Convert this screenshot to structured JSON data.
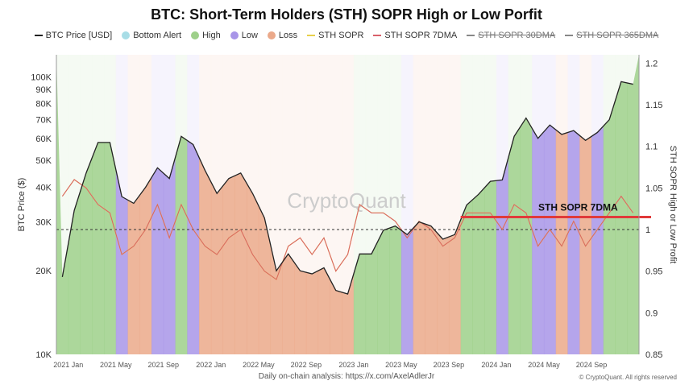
{
  "chart_data": {
    "type": "area",
    "title": "BTC: Short-Term Holders (STH) SOPR High or Low Porfit",
    "ylabel_left": "BTC Price ($)",
    "ylabel_right": "STH SOPR High or Low Profit",
    "y_left_scale": "log",
    "y_left_range": [
      10000,
      120000
    ],
    "y_left_ticks": [
      {
        "v": 10000,
        "l": "10K"
      },
      {
        "v": 20000,
        "l": "20K"
      },
      {
        "v": 30000,
        "l": "30K"
      },
      {
        "v": 40000,
        "l": "40K"
      },
      {
        "v": 50000,
        "l": "50K"
      },
      {
        "v": 60000,
        "l": "60K"
      },
      {
        "v": 70000,
        "l": "70K"
      },
      {
        "v": 80000,
        "l": "80K"
      },
      {
        "v": 90000,
        "l": "90K"
      },
      {
        "v": 100000,
        "l": "100K"
      }
    ],
    "y_right_range": [
      0.85,
      1.21
    ],
    "y_right_ticks": [
      "0.85",
      "0.9",
      "0.95",
      "1",
      "1.05",
      "1.1",
      "1.15",
      "1.2"
    ],
    "x_ticks": [
      "2021 Jan",
      "2021 May",
      "2021 Sep",
      "2022 Jan",
      "2022 May",
      "2022 Sep",
      "2023 Jan",
      "2023 May",
      "2023 Sep",
      "2024 Jan",
      "2024 May",
      "2024 Sep"
    ],
    "legend": [
      {
        "name": "BTC Price [USD]",
        "type": "line",
        "color": "#222222"
      },
      {
        "name": "Bottom Alert",
        "type": "dot",
        "color": "#a8dde6"
      },
      {
        "name": "High",
        "type": "dot",
        "color": "#9ed08a"
      },
      {
        "name": "Low",
        "type": "dot",
        "color": "#a895e8"
      },
      {
        "name": "Loss",
        "type": "dot",
        "color": "#eba98a"
      },
      {
        "name": "STH SOPR",
        "type": "line",
        "color": "#e8d04a"
      },
      {
        "name": "STH SOPR 7DMA",
        "type": "line",
        "color": "#d9606a"
      },
      {
        "name": "STH SOPR 30DMA",
        "type": "line",
        "color": "#888888",
        "hidden": true
      },
      {
        "name": "STH SOPR 365DMA",
        "type": "line",
        "color": "#888888",
        "hidden": true
      }
    ],
    "months": [
      "2020-12",
      "2021-01",
      "2021-02",
      "2021-03",
      "2021-04",
      "2021-05",
      "2021-06",
      "2021-07",
      "2021-08",
      "2021-09",
      "2021-10",
      "2021-11",
      "2021-12",
      "2022-01",
      "2022-02",
      "2022-03",
      "2022-04",
      "2022-05",
      "2022-06",
      "2022-07",
      "2022-08",
      "2022-09",
      "2022-10",
      "2022-11",
      "2022-12",
      "2023-01",
      "2023-02",
      "2023-03",
      "2023-04",
      "2023-05",
      "2023-06",
      "2023-07",
      "2023-08",
      "2023-09",
      "2023-10",
      "2023-11",
      "2023-12",
      "2024-01",
      "2024-02",
      "2024-03",
      "2024-04",
      "2024-05",
      "2024-06",
      "2024-07",
      "2024-08",
      "2024-09",
      "2024-10",
      "2024-11",
      "2024-12"
    ],
    "btc_price": [
      19000,
      33000,
      45000,
      58000,
      58000,
      37000,
      35000,
      40000,
      47000,
      43000,
      61000,
      57000,
      46000,
      38000,
      43000,
      45000,
      38000,
      31000,
      20000,
      23000,
      20000,
      19500,
      20500,
      17000,
      16500,
      23000,
      23000,
      28000,
      29000,
      27000,
      30000,
      29000,
      26000,
      27000,
      34500,
      37700,
      42000,
      42500,
      61000,
      71000,
      60000,
      67000,
      62000,
      64000,
      59000,
      63000,
      70000,
      96000,
      94000
    ],
    "sth_sopr_7dma": [
      1.04,
      1.06,
      1.05,
      1.03,
      1.02,
      0.97,
      0.98,
      1.0,
      1.03,
      0.99,
      1.03,
      1.0,
      0.98,
      0.97,
      0.99,
      1.0,
      0.97,
      0.95,
      0.94,
      0.98,
      0.99,
      0.97,
      0.99,
      0.95,
      0.97,
      1.03,
      1.02,
      1.02,
      1.01,
      0.99,
      1.01,
      1.0,
      0.98,
      0.99,
      1.02,
      1.02,
      1.02,
      1.0,
      1.03,
      1.02,
      0.98,
      1.0,
      0.98,
      1.01,
      0.98,
      1.0,
      1.02,
      1.04,
      1.02
    ],
    "regime": [
      "High",
      "High",
      "High",
      "High",
      "High",
      "Low",
      "Loss",
      "Loss",
      "Low",
      "Low",
      "High",
      "Low",
      "Loss",
      "Loss",
      "Loss",
      "Loss",
      "Loss",
      "Loss",
      "Loss",
      "Loss",
      "Loss",
      "Loss",
      "Loss",
      "Loss",
      "Loss",
      "High",
      "High",
      "High",
      "High",
      "Low",
      "Loss",
      "Loss",
      "Loss",
      "Loss",
      "High",
      "High",
      "High",
      "Low",
      "High",
      "High",
      "Low",
      "Low",
      "Loss",
      "Low",
      "Loss",
      "Low",
      "High",
      "High",
      "High"
    ],
    "reference_line": {
      "value": 1,
      "style": "dashed"
    },
    "annotation": {
      "text": "STH SOPR 7DMA",
      "value": 1.015,
      "from": "2023-10",
      "to": "2024-12",
      "color": "#e03a3a"
    },
    "watermark": "CryptoQuant"
  },
  "footer": {
    "text": "Daily on-chain analysis: ",
    "link": "https://x.com/AxelAdlerJr",
    "copyright": "© CryptoQuant. All rights reserved"
  }
}
